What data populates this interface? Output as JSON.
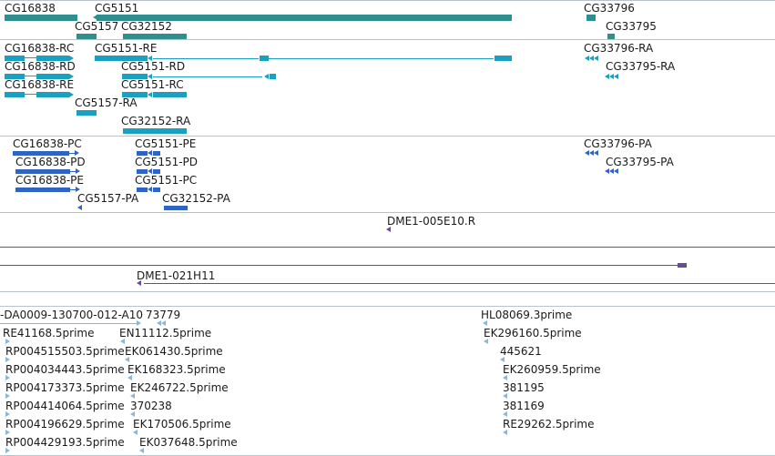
{
  "colors": {
    "gene": "#2f8f8e",
    "transcript": "#1aa0c0",
    "protein": "#2f63c4",
    "clone": "#6b4a9b",
    "est": "#8ab8d6",
    "separator": "#b8c4cc"
  },
  "genes": [
    {
      "label": "CG16838"
    },
    {
      "label": "CG5151"
    },
    {
      "label": "CG33796"
    },
    {
      "label": "CG5157"
    },
    {
      "label": "CG32152"
    },
    {
      "label": "CG33795"
    }
  ],
  "transcripts": [
    {
      "label": "CG16838-RC"
    },
    {
      "label": "CG5151-RE"
    },
    {
      "label": "CG33796-RA"
    },
    {
      "label": "CG16838-RD"
    },
    {
      "label": "CG5151-RD"
    },
    {
      "label": "CG33795-RA"
    },
    {
      "label": "CG16838-RE"
    },
    {
      "label": "CG5151-RC"
    },
    {
      "label": "CG5157-RA"
    },
    {
      "label": "CG32152-RA"
    }
  ],
  "proteins": [
    {
      "label": "CG16838-PC"
    },
    {
      "label": "CG5151-PE"
    },
    {
      "label": "CG33796-PA"
    },
    {
      "label": "CG16838-PD"
    },
    {
      "label": "CG5151-PD"
    },
    {
      "label": "CG33795-PA"
    },
    {
      "label": "CG16838-PE"
    },
    {
      "label": "CG5151-PC"
    },
    {
      "label": "CG5157-PA"
    },
    {
      "label": "CG32152-PA"
    }
  ],
  "clones": [
    {
      "label": "DME1-005E10.R"
    },
    {
      "label": "DME1-021H11"
    }
  ],
  "ests": [
    {
      "label": "-DA0009-130700-012-A10"
    },
    {
      "label": "73779"
    },
    {
      "label": "HL08069.3prime"
    },
    {
      "label": "RE41168.5prime"
    },
    {
      "label": "EN11112.5prime"
    },
    {
      "label": "EK296160.5prime"
    },
    {
      "label": "RP004515503.5prime"
    },
    {
      "label": "EK061430.5prime"
    },
    {
      "label": "445621"
    },
    {
      "label": "RP004034443.5prime"
    },
    {
      "label": "EK168323.5prime"
    },
    {
      "label": "EK260959.5prime"
    },
    {
      "label": "RP004173373.5prime"
    },
    {
      "label": "EK246722.5prime"
    },
    {
      "label": "381195"
    },
    {
      "label": "RP004414064.5prime"
    },
    {
      "label": "370238"
    },
    {
      "label": "381169"
    },
    {
      "label": "RP004196629.5prime"
    },
    {
      "label": "EK170506.5prime"
    },
    {
      "label": "RE29262.5prime"
    },
    {
      "label": "RP004429193.5prime"
    },
    {
      "label": "EK037648.5prime"
    }
  ]
}
